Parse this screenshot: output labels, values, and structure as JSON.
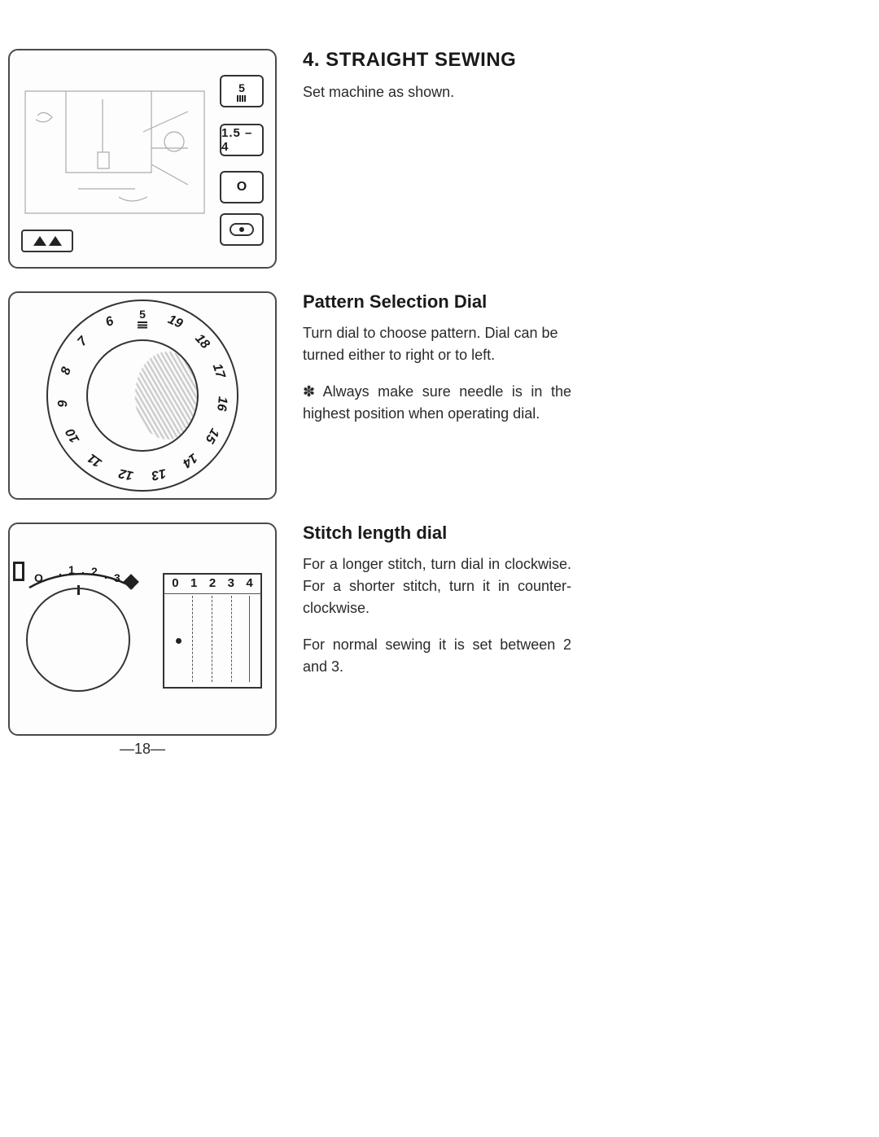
{
  "section1": {
    "title": "4. STRAIGHT SEWING",
    "body": "Set machine as shown.",
    "settings": {
      "pattern_number": "5",
      "stitch_range": "1.5 – 4",
      "width": "O"
    }
  },
  "section2": {
    "title": "Pattern Selection Dial",
    "body1": "Turn dial to choose pattern. Dial can be turned either to right or to left.",
    "body2": "✽ Always make sure needle is in the highest position when operating dial.",
    "dial_top_number": "5",
    "dial_numbers": [
      "6",
      "7",
      "8",
      "9",
      "10",
      "11",
      "12",
      "13",
      "14",
      "15",
      "16",
      "17",
      "18",
      "19"
    ]
  },
  "section3": {
    "title": "Stitch length dial",
    "body1": "For a longer stitch, turn dial in clockwise. For a shorter stitch, turn it in counter-clockwise.",
    "body2": "For normal sewing it is set between 2 and 3.",
    "scale_o": "O",
    "scale_labels": [
      "1",
      "2",
      "3"
    ],
    "table_header": [
      "0",
      "1",
      "2",
      "3",
      "4"
    ]
  },
  "page_number": "—18—",
  "colors": {
    "line": "#333333",
    "text": "#1a1a1a"
  }
}
